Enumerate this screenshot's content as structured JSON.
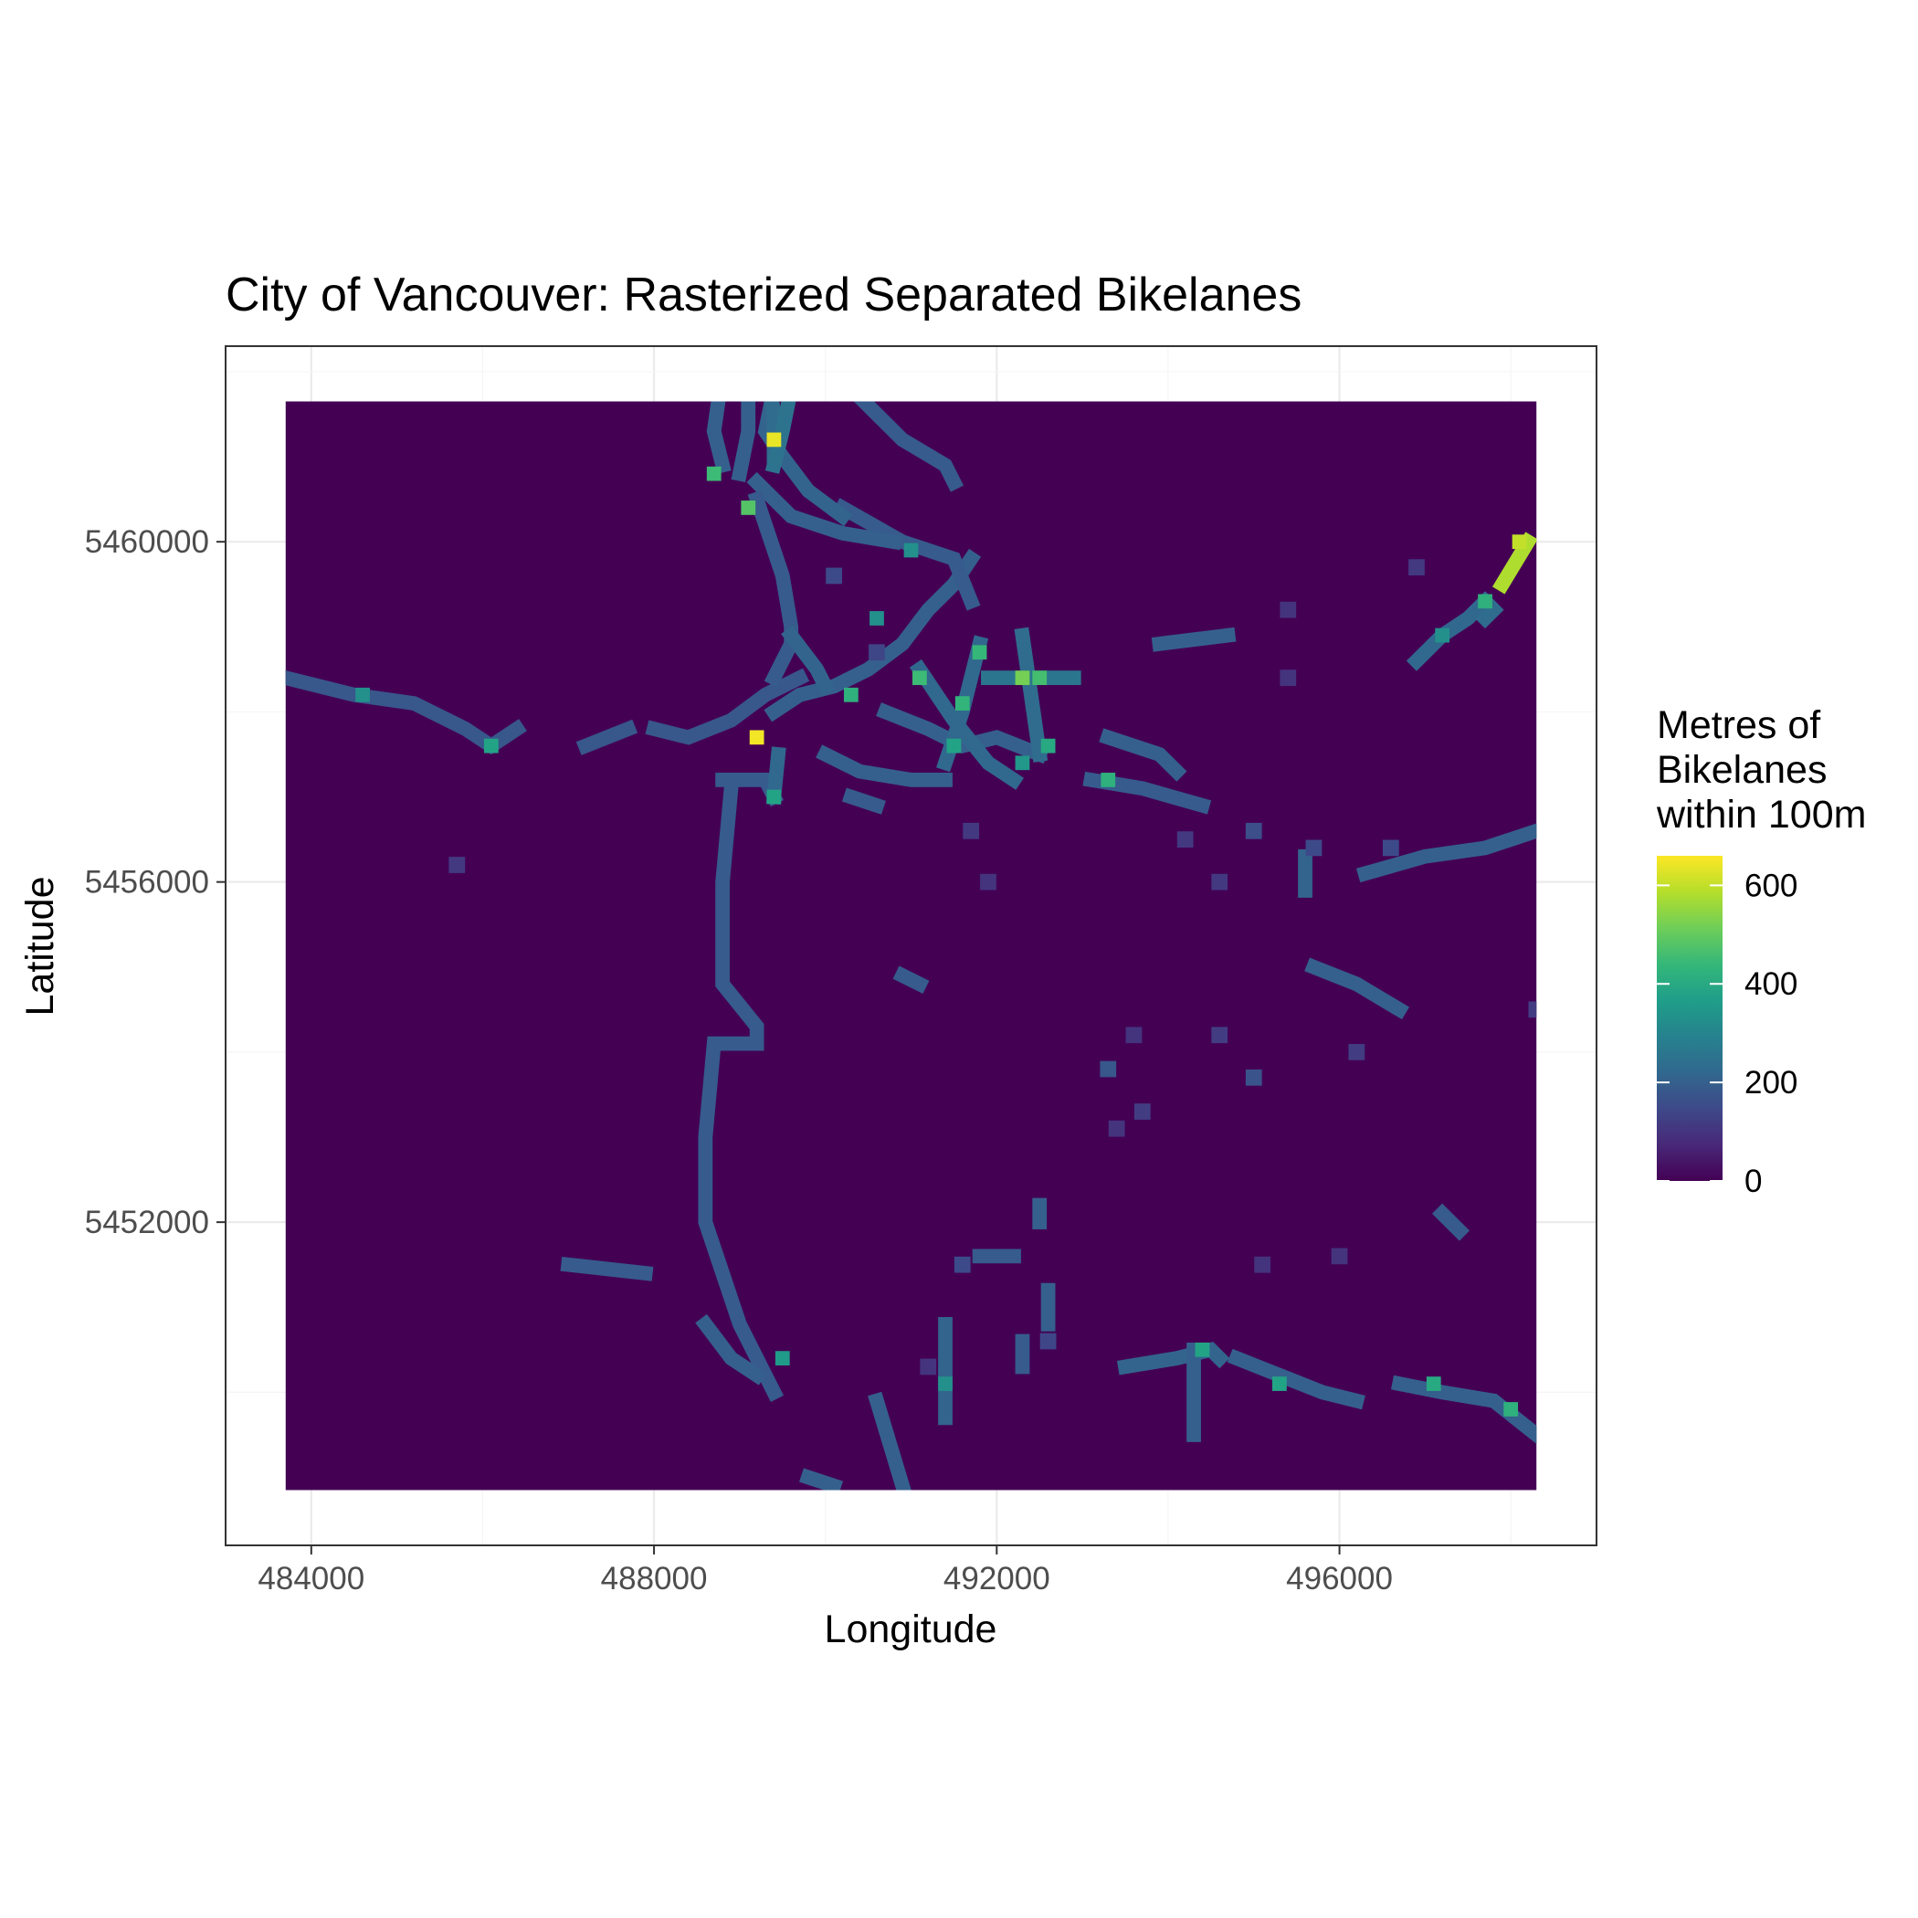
{
  "chart_data": {
    "type": "heatmap",
    "title": "City of Vancouver: Rasterized Separated Bikelanes",
    "xlabel": "Longitude",
    "ylabel": "Latitude",
    "xlim": [
      483000,
      499000
    ],
    "ylim": [
      5448200,
      5462300
    ],
    "raster_extent": {
      "x": [
        483700,
        498300
      ],
      "y": [
        5448850,
        5461650
      ]
    },
    "x_ticks": [
      484000,
      488000,
      492000,
      496000
    ],
    "x_tick_labels": [
      "484000",
      "488000",
      "492000",
      "496000"
    ],
    "y_ticks": [
      5452000,
      5456000,
      5460000
    ],
    "y_tick_labels": [
      "5452000",
      "5456000",
      "5460000"
    ],
    "grid": true,
    "background_value": 0,
    "lanes": [
      {
        "v": 180,
        "pts": [
          [
            483700,
            5458400
          ],
          [
            484500,
            5458200
          ],
          [
            485200,
            5458100
          ],
          [
            485800,
            5457800
          ],
          [
            486100,
            5457600
          ],
          [
            486400,
            5457800
          ]
        ]
      },
      {
        "v": 180,
        "pts": [
          [
            487200,
            5457600
          ],
          [
            487700,
            5457800
          ]
        ]
      },
      {
        "v": 180,
        "pts": [
          [
            488000,
            5457800
          ],
          [
            488400,
            5457700
          ],
          [
            488900,
            5457900
          ],
          [
            489300,
            5458200
          ],
          [
            489700,
            5458400
          ]
        ]
      },
      {
        "v": 190,
        "pts": [
          [
            488800,
            5457200
          ],
          [
            489300,
            5457200
          ],
          [
            489400,
            5457000
          ]
        ]
      },
      {
        "v": 220,
        "pts": [
          [
            489450,
            5457500
          ],
          [
            489400,
            5457000
          ]
        ]
      },
      {
        "v": 190,
        "pts": [
          [
            488900,
            5457100
          ],
          [
            488800,
            5456000
          ],
          [
            488800,
            5454800
          ],
          [
            489200,
            5454300
          ],
          [
            489200,
            5454100
          ],
          [
            488700,
            5454100
          ],
          [
            488600,
            5453000
          ],
          [
            488600,
            5452000
          ],
          [
            489000,
            5450800
          ],
          [
            489400,
            5450000
          ]
        ]
      },
      {
        "v": 200,
        "pts": [
          [
            489400,
            5458000
          ],
          [
            489700,
            5458200
          ],
          [
            490100,
            5458300
          ],
          [
            490500,
            5458500
          ],
          [
            490900,
            5458800
          ],
          [
            491200,
            5459200
          ],
          [
            491500,
            5459500
          ],
          [
            491700,
            5459800
          ]
        ]
      },
      {
        "v": 200,
        "pts": [
          [
            490700,
            5458000
          ],
          [
            491200,
            5457800
          ],
          [
            491600,
            5457600
          ],
          [
            492000,
            5457700
          ],
          [
            492500,
            5457500
          ]
        ]
      },
      {
        "v": 200,
        "pts": [
          [
            490000,
            5457500
          ],
          [
            490400,
            5457300
          ],
          [
            491000,
            5457200
          ],
          [
            491400,
            5457200
          ]
        ]
      },
      {
        "v": 220,
        "pts": [
          [
            491100,
            5458500
          ],
          [
            491500,
            5457900
          ],
          [
            491900,
            5457400
          ],
          [
            492200,
            5457200
          ]
        ]
      },
      {
        "v": 220,
        "pts": [
          [
            491800,
            5458800
          ],
          [
            491600,
            5458000
          ],
          [
            491400,
            5457400
          ]
        ]
      },
      {
        "v": 230,
        "pts": [
          [
            492300,
            5458900
          ],
          [
            492400,
            5458200
          ],
          [
            492500,
            5457500
          ]
        ]
      },
      {
        "v": 260,
        "pts": [
          [
            491900,
            5458400
          ],
          [
            492900,
            5458400
          ]
        ]
      },
      {
        "v": 190,
        "pts": [
          [
            490200,
            5460400
          ],
          [
            490900,
            5460000
          ],
          [
            491500,
            5459800
          ],
          [
            491700,
            5459300
          ]
        ]
      },
      {
        "v": 200,
        "pts": [
          [
            489200,
            5460700
          ],
          [
            489600,
            5460300
          ],
          [
            490200,
            5460100
          ],
          [
            490800,
            5460000
          ]
        ]
      },
      {
        "v": 190,
        "pts": [
          [
            489900,
            5462300
          ],
          [
            490400,
            5461700
          ],
          [
            490900,
            5461200
          ],
          [
            491400,
            5460900
          ],
          [
            491500,
            5460700
          ]
        ]
      },
      {
        "v": 210,
        "pts": [
          [
            489500,
            5462300
          ],
          [
            489300,
            5461300
          ],
          [
            489500,
            5461000
          ],
          [
            489800,
            5460600
          ],
          [
            490200,
            5460300
          ]
        ]
      },
      {
        "v": 200,
        "pts": [
          [
            488800,
            5462000
          ],
          [
            488700,
            5461300
          ],
          [
            488800,
            5460900
          ]
        ]
      },
      {
        "v": 200,
        "pts": [
          [
            489100,
            5462100
          ],
          [
            489100,
            5461300
          ],
          [
            489000,
            5460800
          ]
        ]
      },
      {
        "v": 230,
        "pts": [
          [
            489300,
            5462200
          ],
          [
            489400,
            5461500
          ],
          [
            489400,
            5461000
          ]
        ]
      },
      {
        "v": 250,
        "pts": [
          [
            489700,
            5462300
          ],
          [
            489500,
            5461300
          ],
          [
            489400,
            5460900
          ]
        ]
      },
      {
        "v": 190,
        "pts": [
          [
            489200,
            5460500
          ],
          [
            489500,
            5459600
          ],
          [
            489600,
            5459000
          ],
          [
            489600,
            5458800
          ],
          [
            489400,
            5458400
          ]
        ]
      },
      {
        "v": 210,
        "pts": [
          [
            489600,
            5458900
          ],
          [
            489900,
            5458500
          ],
          [
            490000,
            5458300
          ]
        ]
      },
      {
        "v": 200,
        "pts": [
          [
            493300,
            5457700
          ],
          [
            493900,
            5457500
          ],
          [
            494100,
            5457300
          ]
        ]
      },
      {
        "v": 190,
        "pts": [
          [
            493100,
            5457200
          ],
          [
            493700,
            5457100
          ],
          [
            494400,
            5456900
          ]
        ]
      },
      {
        "v": 200,
        "pts": [
          [
            493900,
            5458800
          ],
          [
            494700,
            5458900
          ]
        ]
      },
      {
        "v": 210,
        "pts": [
          [
            495600,
            5456300
          ],
          [
            495600,
            5455900
          ]
        ]
      },
      {
        "v": 200,
        "pts": [
          [
            495700,
            5455000
          ],
          [
            496200,
            5454800
          ],
          [
            496700,
            5454500
          ]
        ]
      },
      {
        "v": 200,
        "pts": [
          [
            496300,
            5456100
          ],
          [
            497000,
            5456300
          ],
          [
            497700,
            5456400
          ],
          [
            498300,
            5456600
          ]
        ]
      },
      {
        "v": 220,
        "pts": [
          [
            496900,
            5458600
          ],
          [
            497200,
            5458900
          ],
          [
            497500,
            5459100
          ],
          [
            497700,
            5459300
          ]
        ]
      },
      {
        "v": 230,
        "pts": [
          [
            497700,
            5459100
          ],
          [
            497800,
            5459200
          ]
        ]
      },
      {
        "v": 580,
        "pts": [
          [
            497900,
            5459500
          ],
          [
            498200,
            5460000
          ]
        ]
      },
      {
        "v": 200,
        "pts": [
          [
            496700,
            5450100
          ],
          [
            497200,
            5450000
          ],
          [
            497800,
            5449900
          ],
          [
            498300,
            5449500
          ]
        ]
      },
      {
        "v": 200,
        "pts": [
          [
            494800,
            5450400
          ],
          [
            495300,
            5450200
          ],
          [
            495800,
            5450000
          ],
          [
            496200,
            5449900
          ]
        ]
      },
      {
        "v": 210,
        "pts": [
          [
            493500,
            5450300
          ],
          [
            494100,
            5450400
          ],
          [
            494500,
            5450500
          ],
          [
            494600,
            5450400
          ]
        ]
      },
      {
        "v": 200,
        "pts": [
          [
            494300,
            5450500
          ],
          [
            494300,
            5449500
          ]
        ]
      },
      {
        "v": 210,
        "pts": [
          [
            491400,
            5450800
          ],
          [
            491400,
            5449700
          ]
        ]
      },
      {
        "v": 200,
        "pts": [
          [
            490600,
            5449900
          ],
          [
            490900,
            5448900
          ]
        ]
      },
      {
        "v": 200,
        "pts": [
          [
            488600,
            5450800
          ],
          [
            488900,
            5450400
          ],
          [
            489200,
            5450200
          ]
        ]
      },
      {
        "v": 190,
        "pts": [
          [
            487000,
            5451500
          ],
          [
            487900,
            5451400
          ]
        ]
      },
      {
        "v": 190,
        "pts": [
          [
            491800,
            5451600
          ],
          [
            492200,
            5451600
          ]
        ]
      },
      {
        "v": 200,
        "pts": [
          [
            492600,
            5451200
          ],
          [
            492600,
            5450800
          ]
        ]
      },
      {
        "v": 190,
        "pts": [
          [
            492300,
            5450600
          ],
          [
            492300,
            5450300
          ]
        ]
      },
      {
        "v": 200,
        "pts": [
          [
            492500,
            5452200
          ],
          [
            492500,
            5452000
          ]
        ]
      },
      {
        "v": 200,
        "pts": [
          [
            489800,
            5449000
          ],
          [
            490100,
            5448900
          ]
        ]
      },
      {
        "v": 190,
        "pts": [
          [
            497200,
            5452100
          ],
          [
            497400,
            5451900
          ]
        ]
      },
      {
        "v": 190,
        "pts": [
          [
            490900,
            5454900
          ],
          [
            491100,
            5454800
          ]
        ]
      },
      {
        "v": 190,
        "pts": [
          [
            490300,
            5457000
          ],
          [
            490600,
            5456900
          ]
        ]
      }
    ],
    "hotspots": [
      {
        "x": 489400,
        "y": 5461200,
        "v": 640
      },
      {
        "x": 489200,
        "y": 5457700,
        "v": 650
      },
      {
        "x": 488700,
        "y": 5460800,
        "v": 450
      },
      {
        "x": 489100,
        "y": 5460400,
        "v": 480
      },
      {
        "x": 489800,
        "y": 5462000,
        "v": 420
      },
      {
        "x": 490300,
        "y": 5458200,
        "v": 420
      },
      {
        "x": 491100,
        "y": 5458400,
        "v": 450
      },
      {
        "x": 491600,
        "y": 5458100,
        "v": 430
      },
      {
        "x": 491800,
        "y": 5458700,
        "v": 440
      },
      {
        "x": 492300,
        "y": 5458400,
        "v": 520
      },
      {
        "x": 492500,
        "y": 5458400,
        "v": 460
      },
      {
        "x": 491500,
        "y": 5457600,
        "v": 380
      },
      {
        "x": 492600,
        "y": 5457600,
        "v": 400
      },
      {
        "x": 489400,
        "y": 5457000,
        "v": 380
      },
      {
        "x": 486100,
        "y": 5457600,
        "v": 380
      },
      {
        "x": 484600,
        "y": 5458200,
        "v": 330
      },
      {
        "x": 490600,
        "y": 5459100,
        "v": 330
      },
      {
        "x": 491000,
        "y": 5459900,
        "v": 330
      },
      {
        "x": 492300,
        "y": 5457400,
        "v": 350
      },
      {
        "x": 493300,
        "y": 5457200,
        "v": 420
      },
      {
        "x": 498100,
        "y": 5460000,
        "v": 600
      },
      {
        "x": 497700,
        "y": 5459300,
        "v": 420
      },
      {
        "x": 497200,
        "y": 5458900,
        "v": 330
      },
      {
        "x": 495300,
        "y": 5450100,
        "v": 380
      },
      {
        "x": 497100,
        "y": 5450100,
        "v": 400
      },
      {
        "x": 498000,
        "y": 5449800,
        "v": 420
      },
      {
        "x": 489500,
        "y": 5450400,
        "v": 360
      },
      {
        "x": 491400,
        "y": 5450100,
        "v": 330
      },
      {
        "x": 494400,
        "y": 5450500,
        "v": 380
      }
    ],
    "isolated_cells": [
      {
        "x": 485700,
        "y": 5456200,
        "v": 110
      },
      {
        "x": 491900,
        "y": 5456000,
        "v": 100
      },
      {
        "x": 491700,
        "y": 5456600,
        "v": 110
      },
      {
        "x": 494200,
        "y": 5456500,
        "v": 110
      },
      {
        "x": 494600,
        "y": 5456000,
        "v": 110
      },
      {
        "x": 495000,
        "y": 5456600,
        "v": 160
      },
      {
        "x": 495700,
        "y": 5456400,
        "v": 150
      },
      {
        "x": 493600,
        "y": 5454200,
        "v": 100
      },
      {
        "x": 494600,
        "y": 5454200,
        "v": 120
      },
      {
        "x": 496200,
        "y": 5454000,
        "v": 120
      },
      {
        "x": 493300,
        "y": 5453800,
        "v": 180
      },
      {
        "x": 495000,
        "y": 5453700,
        "v": 170
      },
      {
        "x": 493400,
        "y": 5453100,
        "v": 100
      },
      {
        "x": 493700,
        "y": 5453300,
        "v": 120
      },
      {
        "x": 495100,
        "y": 5451500,
        "v": 100
      },
      {
        "x": 496000,
        "y": 5451600,
        "v": 100
      },
      {
        "x": 491600,
        "y": 5451500,
        "v": 150
      },
      {
        "x": 492600,
        "y": 5450600,
        "v": 140
      },
      {
        "x": 491200,
        "y": 5450300,
        "v": 100
      },
      {
        "x": 495400,
        "y": 5459200,
        "v": 100
      },
      {
        "x": 495400,
        "y": 5458400,
        "v": 100
      },
      {
        "x": 496900,
        "y": 5459700,
        "v": 110
      },
      {
        "x": 490100,
        "y": 5459600,
        "v": 150
      },
      {
        "x": 490600,
        "y": 5458700,
        "v": 140
      },
      {
        "x": 496600,
        "y": 5456400,
        "v": 150
      },
      {
        "x": 498300,
        "y": 5454500,
        "v": 120
      }
    ],
    "legend": {
      "title_lines": [
        "Metres of",
        "Bikelanes",
        "within 100m"
      ],
      "placement": "right",
      "min": 0,
      "max": 660,
      "breaks": [
        0,
        200,
        400,
        600
      ],
      "break_labels": [
        "0",
        "200",
        "400",
        "600"
      ],
      "colormap": "viridis",
      "colormap_stops": [
        "#440154",
        "#482878",
        "#3e4989",
        "#31688e",
        "#26828e",
        "#1f9e89",
        "#35b779",
        "#6ece58",
        "#b5de2b",
        "#fde725"
      ]
    },
    "colors": {
      "panel_border": "#333333",
      "grid_major": "#ebebeb",
      "grid_minor": "#f5f5f5",
      "tick_text": "#4d4d4d",
      "background_fill": "#440154"
    }
  }
}
